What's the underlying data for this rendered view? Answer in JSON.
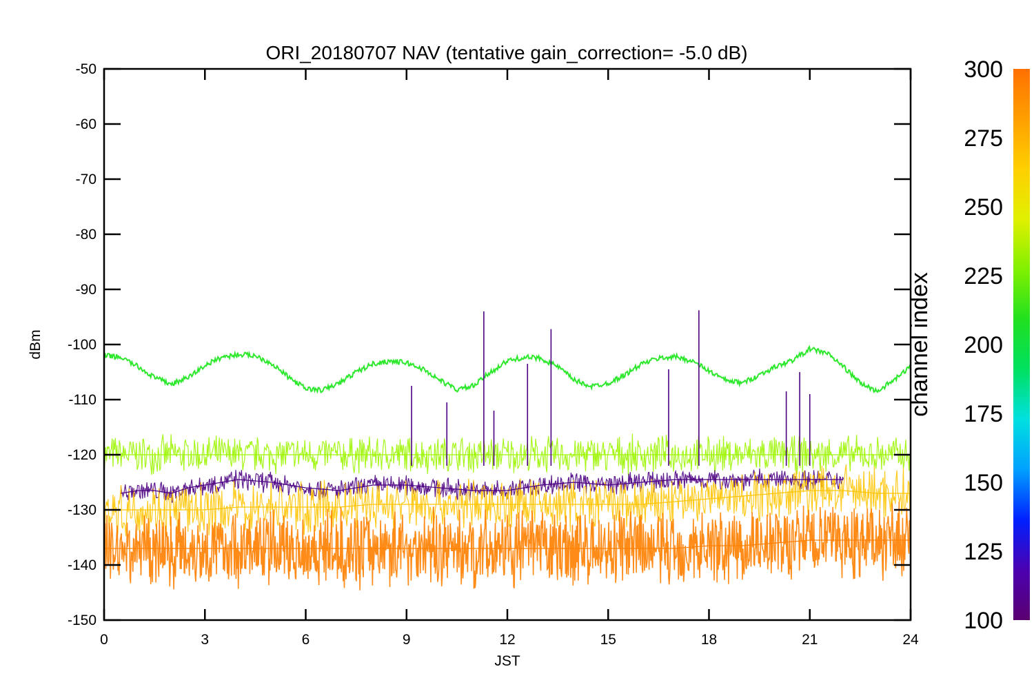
{
  "chart_data": {
    "type": "line",
    "title": "ORI_20180707 NAV (tentative gain_correction= -5.0 dB)",
    "xlabel": "JST",
    "ylabel": "dBm",
    "xlim": [
      0,
      24
    ],
    "ylim": [
      -150,
      -50
    ],
    "x_ticks": [
      "0",
      "3",
      "6",
      "9",
      "12",
      "15",
      "18",
      "21",
      "24"
    ],
    "y_ticks": [
      "-50",
      "-60",
      "-70",
      "-80",
      "-90",
      "-100",
      "-110",
      "-120",
      "-130",
      "-140",
      "-150"
    ],
    "grid": false,
    "colorbar": {
      "label": "channel index",
      "range": [
        100,
        300
      ],
      "ticks": [
        "300",
        "275",
        "250",
        "225",
        "200",
        "175",
        "150",
        "125",
        "100"
      ],
      "colors": [
        "#5a0070",
        "#4b00b0",
        "#0020ff",
        "#00a0ff",
        "#00e0e0",
        "#00e060",
        "#20e020",
        "#80f000",
        "#e0f000",
        "#ffd000",
        "#ffa000",
        "#ff7000"
      ]
    },
    "series": [
      {
        "color": "#2ee82e",
        "x": [
          0,
          0.5,
          1,
          1.5,
          2,
          2.5,
          3,
          3.5,
          4,
          4.5,
          5,
          5.5,
          6,
          6.5,
          7,
          7.5,
          8,
          8.5,
          9,
          9.5,
          10,
          10.5,
          11,
          11.5,
          12,
          12.5,
          13,
          13.5,
          14,
          14.5,
          15,
          15.5,
          16,
          16.5,
          17,
          17.5,
          18,
          18.5,
          19,
          19.5,
          20,
          20.5,
          21,
          21.5,
          22,
          22.5,
          23,
          23.5,
          24
        ],
        "y": [
          -102,
          -102.3,
          -104,
          -106,
          -107.2,
          -106,
          -103.8,
          -102.3,
          -101.8,
          -102,
          -103.5,
          -106,
          -108,
          -108.3,
          -107,
          -105,
          -103.5,
          -103,
          -103.3,
          -104.5,
          -106.5,
          -108.2,
          -107.5,
          -105,
          -103,
          -102.3,
          -102.5,
          -104,
          -106.5,
          -107.6,
          -107,
          -105.5,
          -103.5,
          -102.5,
          -102.2,
          -103,
          -104.8,
          -106.5,
          -107,
          -105.5,
          -104,
          -102.8,
          -100.8,
          -101.5,
          -104,
          -107,
          -108.5,
          -106.5,
          -104
        ]
      },
      {
        "color": "#9cf500",
        "x": [
          0,
          1,
          2,
          3,
          4,
          5,
          6,
          7,
          8,
          9,
          10,
          11,
          12,
          13,
          14,
          15,
          16,
          17,
          18,
          19,
          20,
          21,
          22,
          23,
          24
        ],
        "y": [
          -120,
          -120,
          -120,
          -120,
          -120,
          -120,
          -120,
          -120,
          -120,
          -120,
          -120,
          -120,
          -120,
          -120,
          -120,
          -120,
          -120,
          -120,
          -120,
          -120,
          -120,
          -120,
          -120,
          -120,
          -120
        ]
      },
      {
        "color": "#4b0082",
        "x": [
          0.5,
          1,
          1.5,
          2,
          2.5,
          3,
          3.5,
          4,
          5,
          6,
          7,
          8,
          9,
          10,
          11,
          12,
          13,
          14,
          15,
          16,
          17,
          18,
          19,
          20,
          21,
          22
        ],
        "y": [
          -127,
          -126.5,
          -126.5,
          -127,
          -126,
          -125.5,
          -125,
          -124.5,
          -125,
          -126,
          -126.5,
          -125.5,
          -125.5,
          -126,
          -126.5,
          -126.5,
          -125.5,
          -125,
          -125.5,
          -125,
          -124.5,
          -124.5,
          -124.5,
          -124.5,
          -124.5,
          -124.5
        ]
      },
      {
        "color": "#ffc400",
        "x": [
          0,
          1,
          2,
          3,
          4,
          5,
          6,
          7,
          8,
          9,
          10,
          11,
          12,
          13,
          14,
          15,
          16,
          17,
          18,
          19,
          20,
          21,
          22,
          23,
          24
        ],
        "y": [
          -130,
          -130,
          -130,
          -130,
          -129.5,
          -129.5,
          -129.5,
          -129.5,
          -129,
          -129,
          -129,
          -129,
          -129,
          -129,
          -129,
          -129,
          -129,
          -128.5,
          -128,
          -127.5,
          -127,
          -126.5,
          -126.5,
          -127,
          -127
        ]
      },
      {
        "color": "#ff8000",
        "x": [
          0,
          1,
          2,
          3,
          4,
          5,
          6,
          7,
          8,
          9,
          10,
          11,
          12,
          13,
          14,
          15,
          16,
          17,
          18,
          19,
          20,
          21,
          22,
          23,
          24
        ],
        "y": [
          -137,
          -137,
          -137,
          -137,
          -137,
          -137,
          -137,
          -137,
          -137,
          -137,
          -137,
          -137,
          -137,
          -137,
          -137,
          -137,
          -137,
          -137,
          -136.5,
          -136.5,
          -136,
          -135.5,
          -135.5,
          -135.5,
          -135.5
        ]
      }
    ],
    "spikes": [
      {
        "x": 9.15,
        "y_top": -107.5,
        "color": "#4b0082"
      },
      {
        "x": 10.2,
        "y_top": -110.5,
        "color": "#4b0082"
      },
      {
        "x": 11.3,
        "y_top": -94,
        "color": "#4b0082"
      },
      {
        "x": 11.6,
        "y_top": -112,
        "color": "#4b0082"
      },
      {
        "x": 12.6,
        "y_top": -103.5,
        "color": "#4b0082"
      },
      {
        "x": 13.3,
        "y_top": -97.2,
        "color": "#4b0082"
      },
      {
        "x": 16.8,
        "y_top": -104.5,
        "color": "#4b0082"
      },
      {
        "x": 17.7,
        "y_top": -93.8,
        "color": "#4b0082"
      },
      {
        "x": 20.3,
        "y_top": -108.5,
        "color": "#4b0082"
      },
      {
        "x": 20.7,
        "y_top": -105,
        "color": "#4b0082"
      },
      {
        "x": 21.0,
        "y_top": -109,
        "color": "#4b0082"
      }
    ]
  }
}
